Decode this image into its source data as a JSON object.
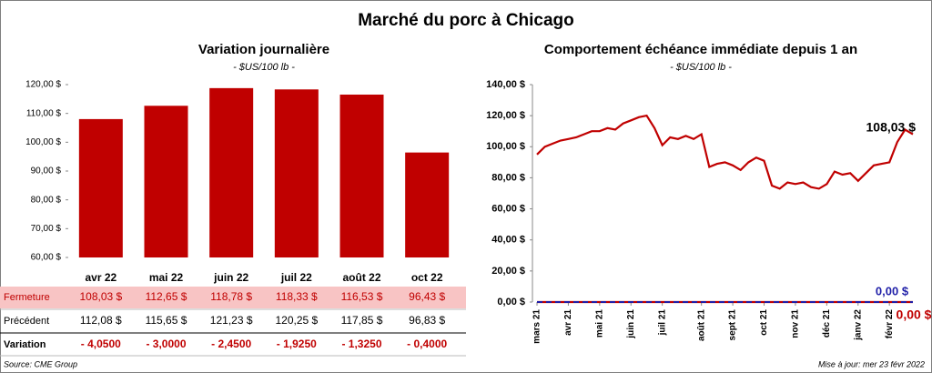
{
  "title": "Marché du porc à Chicago",
  "source": "Source: CME Group",
  "updated": "Mise à jour: mer 23 févr 2022",
  "chart_data": [
    {
      "type": "bar",
      "title": "Variation journalière",
      "subtitle": "- $US/100 lb -",
      "categories": [
        "avr 22",
        "mai 22",
        "juin 22",
        "juil 22",
        "août 22",
        "oct 22"
      ],
      "values": [
        108.03,
        112.65,
        118.78,
        118.33,
        116.53,
        96.43
      ],
      "value_labels": [
        "108,03 $",
        "112,65 $",
        "118,78 $",
        "118,33 $",
        "116,53 $",
        "96,43 $"
      ],
      "color": "#c00000",
      "ylim": [
        60,
        120
      ],
      "yticks": [
        {
          "value": 60,
          "label": "60,00 $"
        },
        {
          "value": 70,
          "label": "70,00 $"
        },
        {
          "value": 80,
          "label": "80,00 $"
        },
        {
          "value": 90,
          "label": "90,00 $"
        },
        {
          "value": 100,
          "label": "100,00 $"
        },
        {
          "value": 110,
          "label": "110,00 $"
        },
        {
          "value": 120,
          "label": "120,00 $"
        }
      ]
    },
    {
      "type": "line",
      "title": "Comportement échéance immédiate depuis 1 an",
      "subtitle": "- $US/100 lb -",
      "x": [
        "mars 21",
        "mars 21",
        "mars 21",
        "mars 21",
        "avr 21",
        "avr 21",
        "avr 21",
        "avr 21",
        "mai 21",
        "mai 21",
        "mai 21",
        "mai 21",
        "juin 21",
        "juin 21",
        "juin 21",
        "juin 21",
        "juil 21",
        "juil 21",
        "juil 21",
        "juil 21",
        "juil 21",
        "août 21",
        "août 21",
        "août 21",
        "août 21",
        "sept 21",
        "sept 21",
        "sept 21",
        "sept 21",
        "oct 21",
        "oct 21",
        "oct 21",
        "oct 21",
        "nov 21",
        "nov 21",
        "nov 21",
        "nov 21",
        "déc 21",
        "déc 21",
        "déc 21",
        "déc 21",
        "janv 22",
        "janv 22",
        "janv 22",
        "janv 22",
        "févr 22",
        "févr 22",
        "févr 22",
        "févr 22"
      ],
      "series": [
        {
          "color": "#c00000",
          "end_label": "108,03 $",
          "values": [
            95,
            100,
            102,
            104,
            105,
            106,
            108,
            110,
            110,
            112,
            111,
            115,
            117,
            119,
            120,
            112,
            101,
            106,
            105,
            107,
            105,
            108,
            87,
            89,
            90,
            88,
            85,
            90,
            93,
            91,
            75,
            73,
            77,
            76,
            77,
            74,
            73,
            76,
            84,
            82,
            83,
            78,
            83,
            88,
            89,
            90,
            103,
            111,
            108.03
          ]
        },
        {
          "color": "#c00000",
          "end_label": "0,00 $",
          "values": [
            0,
            0,
            0,
            0,
            0,
            0,
            0,
            0,
            0,
            0,
            0,
            0,
            0,
            0,
            0,
            0,
            0,
            0,
            0,
            0,
            0,
            0,
            0,
            0,
            0,
            0,
            0,
            0,
            0,
            0,
            0,
            0,
            0,
            0,
            0,
            0,
            0,
            0,
            0,
            0,
            0,
            0,
            0,
            0,
            0,
            0,
            0,
            0,
            0
          ]
        },
        {
          "color": "#1f1fa8",
          "end_label": "0,00 $",
          "dashed": true,
          "values": [
            0,
            0,
            0,
            0,
            0,
            0,
            0,
            0,
            0,
            0,
            0,
            0,
            0,
            0,
            0,
            0,
            0,
            0,
            0,
            0,
            0,
            0,
            0,
            0,
            0,
            0,
            0,
            0,
            0,
            0,
            0,
            0,
            0,
            0,
            0,
            0,
            0,
            0,
            0,
            0,
            0,
            0,
            0,
            0,
            0,
            0,
            0,
            0,
            0
          ]
        }
      ],
      "ylim": [
        0,
        140
      ],
      "yticks": [
        {
          "value": 0,
          "label": "0,00 $"
        },
        {
          "value": 20,
          "label": "20,00 $"
        },
        {
          "value": 40,
          "label": "40,00 $"
        },
        {
          "value": 60,
          "label": "60,00 $"
        },
        {
          "value": 80,
          "label": "80,00 $"
        },
        {
          "value": 100,
          "label": "100,00 $"
        },
        {
          "value": 120,
          "label": "120,00 $"
        },
        {
          "value": 140,
          "label": "140,00 $"
        }
      ]
    }
  ],
  "table": {
    "rows": [
      {
        "label": "Fermeture"
      },
      {
        "label": "Précédent",
        "values": [
          112.08,
          115.65,
          121.23,
          120.25,
          117.85,
          96.83
        ],
        "value_labels": [
          "112,08 $",
          "115,65 $",
          "121,23 $",
          "120,25 $",
          "117,85 $",
          "96,83 $"
        ]
      },
      {
        "label": "Variation",
        "values": [
          -4.05,
          -3.0,
          -2.45,
          -1.925,
          -1.325,
          -0.4
        ],
        "value_labels": [
          "- 4,0500",
          "- 3,0000",
          "- 2,4500",
          "- 1,9250",
          "- 1,3250",
          "- 0,4000"
        ]
      }
    ]
  }
}
